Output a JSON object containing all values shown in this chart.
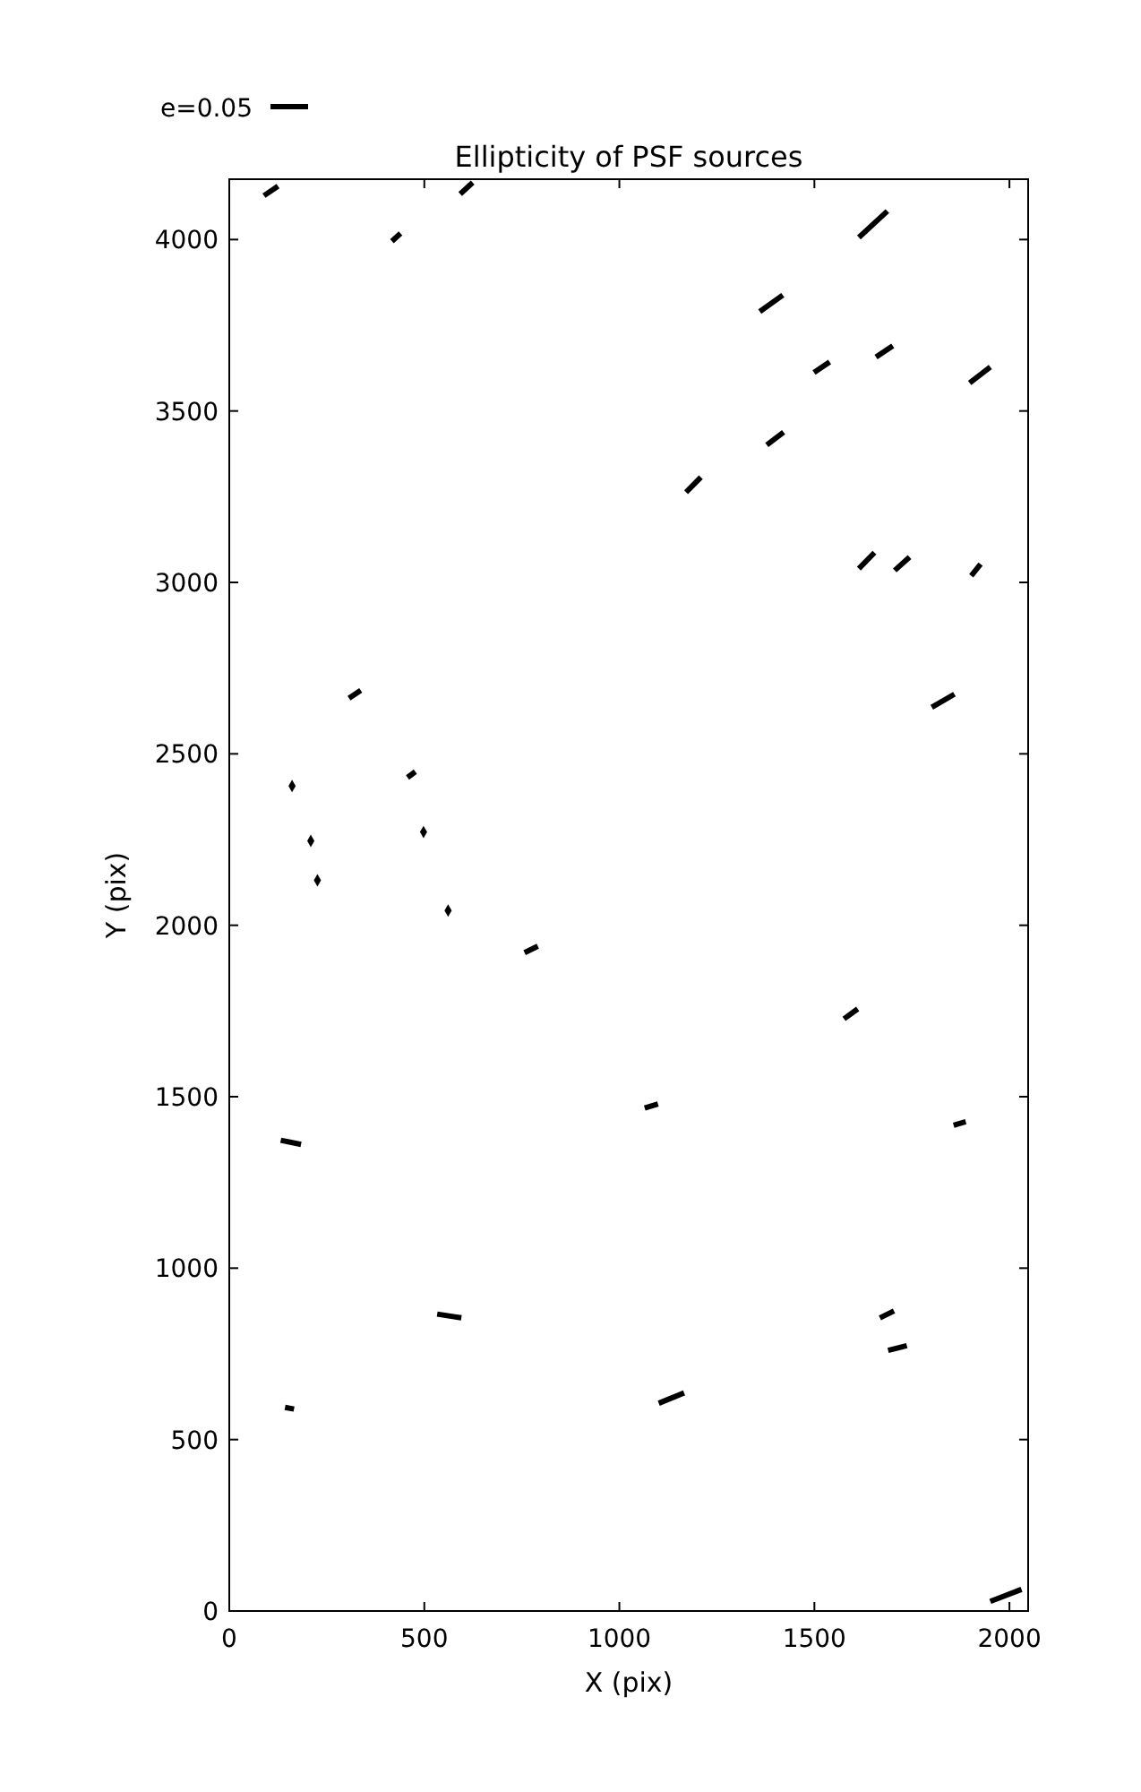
{
  "chart_data": {
    "type": "line",
    "title": "Ellipticity of PSF sources",
    "xlabel": "X (pix)",
    "ylabel": "Y (pix)",
    "annotations": [
      "e=0.05"
    ],
    "xlim": [
      0,
      2048
    ],
    "ylim": [
      0,
      4176
    ],
    "xticks": [
      0,
      500,
      1000,
      1500,
      2000
    ],
    "yticks": [
      0,
      500,
      1000,
      1500,
      2000,
      2500,
      3000,
      3500,
      4000
    ],
    "series": [
      {
        "color": "#000000",
        "x": [
          89,
          125,
          null,
          417,
          439,
          null,
          592,
          624,
          null,
          1614,
          1687,
          null,
          1360,
          1419,
          null,
          1499,
          1539,
          null,
          1658,
          1701,
          null,
          1898,
          1951,
          null,
          1378,
          1421,
          null,
          1171,
          1209,
          null,
          1614,
          1654,
          null,
          1706,
          1744,
          null,
          1902,
          1926,
          null,
          307,
          337,
          null,
          457,
          477,
          null,
          757,
          791,
          null,
          132,
          184,
          null,
          1801,
          1859,
          null,
          1576,
          1611,
          null,
          1065,
          1099,
          null,
          1857,
          1888,
          null,
          533,
          595,
          null,
          143,
          166,
          null,
          1101,
          1166,
          null,
          1668,
          1704,
          null,
          1689,
          1737,
          null,
          1951,
          2031
        ],
        "values": [
          4128,
          4156,
          null,
          3995,
          4018,
          null,
          4133,
          4166,
          null,
          4006,
          4083,
          null,
          3790,
          3838,
          null,
          3612,
          3643,
          null,
          3657,
          3690,
          null,
          3582,
          3628,
          null,
          3401,
          3438,
          null,
          3263,
          3307,
          null,
          3040,
          3087,
          null,
          3035,
          3074,
          null,
          3019,
          3053,
          null,
          2662,
          2685,
          null,
          2431,
          2448,
          null,
          1920,
          1939,
          null,
          1373,
          1361,
          null,
          2636,
          2674,
          null,
          1727,
          1756,
          null,
          1467,
          1479,
          null,
          1417,
          1427,
          null,
          866,
          855,
          null,
          594,
          589,
          null,
          606,
          636,
          null,
          855,
          875,
          null,
          760,
          774,
          null,
          28,
          63
        ]
      },
      {
        "type": "scatter",
        "marker": "diamond",
        "color": "#000000",
        "x": [
          161,
          209,
          498,
          226,
          561
        ],
        "values": [
          2406,
          2246,
          2272,
          2131,
          2043
        ]
      }
    ]
  }
}
